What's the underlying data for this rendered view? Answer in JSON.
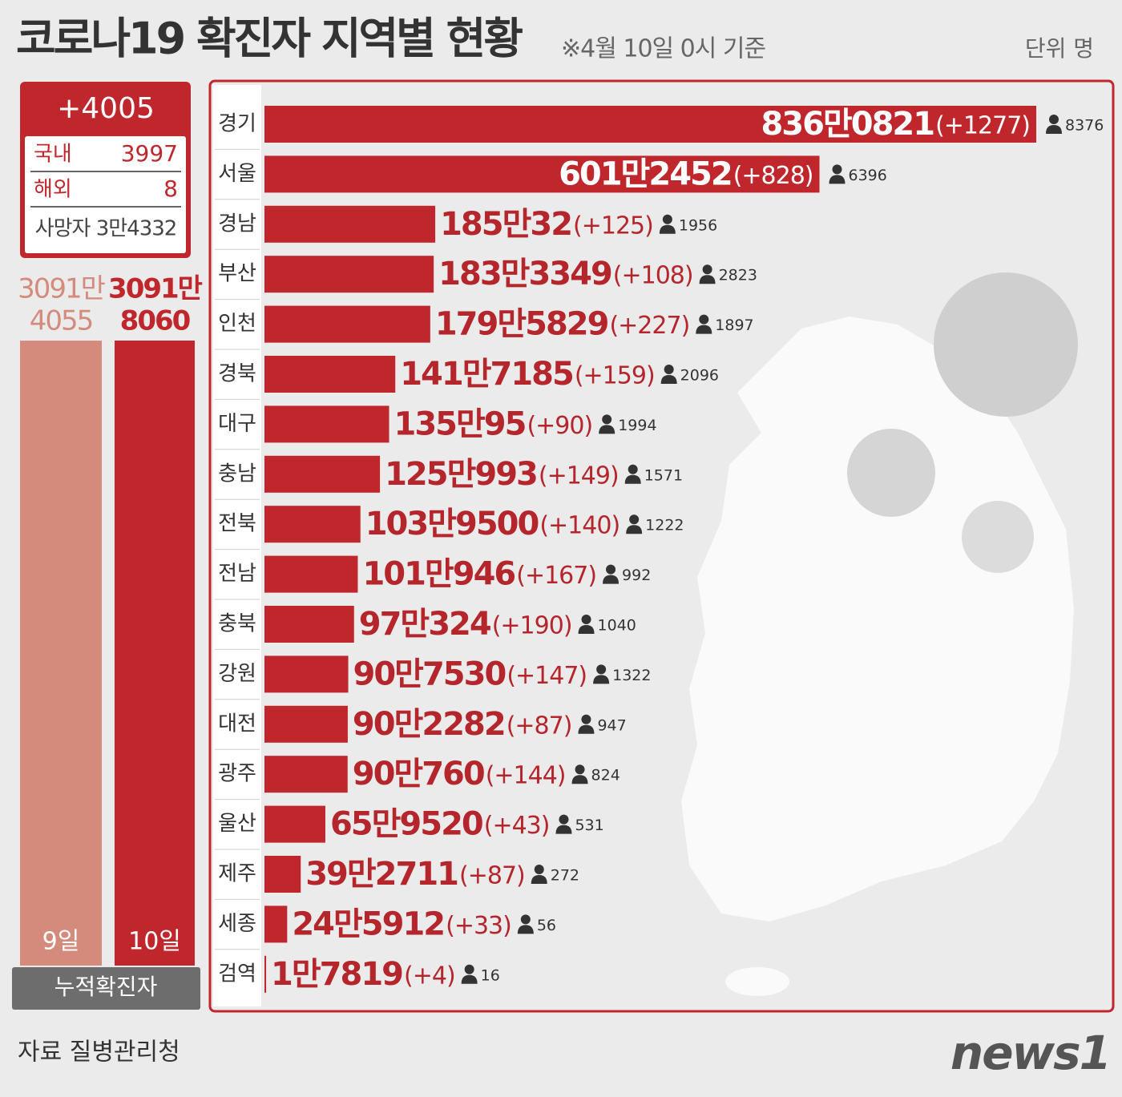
{
  "header": {
    "title": "코로나19 확진자 지역별 현황",
    "subtitle": "※4월 10일 0시 기준",
    "unit": "단위 명"
  },
  "summary": {
    "total": "+4005",
    "rows": [
      [
        "국내",
        "3997"
      ],
      [
        "해외",
        "8"
      ]
    ],
    "deaths": "사망자 3만4332"
  },
  "chart_data": [
    {
      "type": "hbar",
      "categories": [
        "경기",
        "서울",
        "경남",
        "부산",
        "인천",
        "경북",
        "대구",
        "충남",
        "전북",
        "전남",
        "충북",
        "강원",
        "대전",
        "광주",
        "울산",
        "제주",
        "세종",
        "검역"
      ],
      "values": [
        8360821,
        6012452,
        1850032,
        1833349,
        1795829,
        1417185,
        1350095,
        1250993,
        1039500,
        1010946,
        970324,
        907530,
        902282,
        900760,
        659520,
        392711,
        245912,
        17819
      ],
      "value_labels": [
        "836만0821",
        "601만2452",
        "185만32",
        "183만3349",
        "179만5829",
        "141만7185",
        "135만95",
        "125만993",
        "103만9500",
        "101만946",
        "97만324",
        "90만7530",
        "90만2282",
        "90만760",
        "65만9520",
        "39만2711",
        "24만5912",
        "1만7819"
      ],
      "new_case_labels": [
        "(+1277)",
        "(+828)",
        "(+125)",
        "(+108)",
        "(+227)",
        "(+159)",
        "(+90)",
        "(+149)",
        "(+140)",
        "(+167)",
        "(+190)",
        "(+147)",
        "(+87)",
        "(+144)",
        "(+43)",
        "(+87)",
        "(+33)",
        "(+4)"
      ],
      "deaths": [
        8376,
        6396,
        1956,
        2823,
        1897,
        2096,
        1994,
        1571,
        1222,
        992,
        1040,
        1322,
        947,
        824,
        531,
        272,
        56,
        16
      ],
      "color": "#c0272d",
      "xlim": [
        0,
        8360821
      ]
    },
    {
      "type": "bar",
      "label": "누적확진자",
      "categories": [
        "9일",
        "10일"
      ],
      "values": [
        30914055,
        30918060
      ],
      "value_labels": [
        [
          "3091만",
          "4055"
        ],
        [
          "3091만",
          "8060"
        ]
      ],
      "colors": [
        "#d48b7b",
        "#c0272d"
      ],
      "ylim": [
        0,
        30918060
      ]
    }
  ],
  "footer": {
    "source": "자료  질병관리청",
    "logo": "news1"
  }
}
